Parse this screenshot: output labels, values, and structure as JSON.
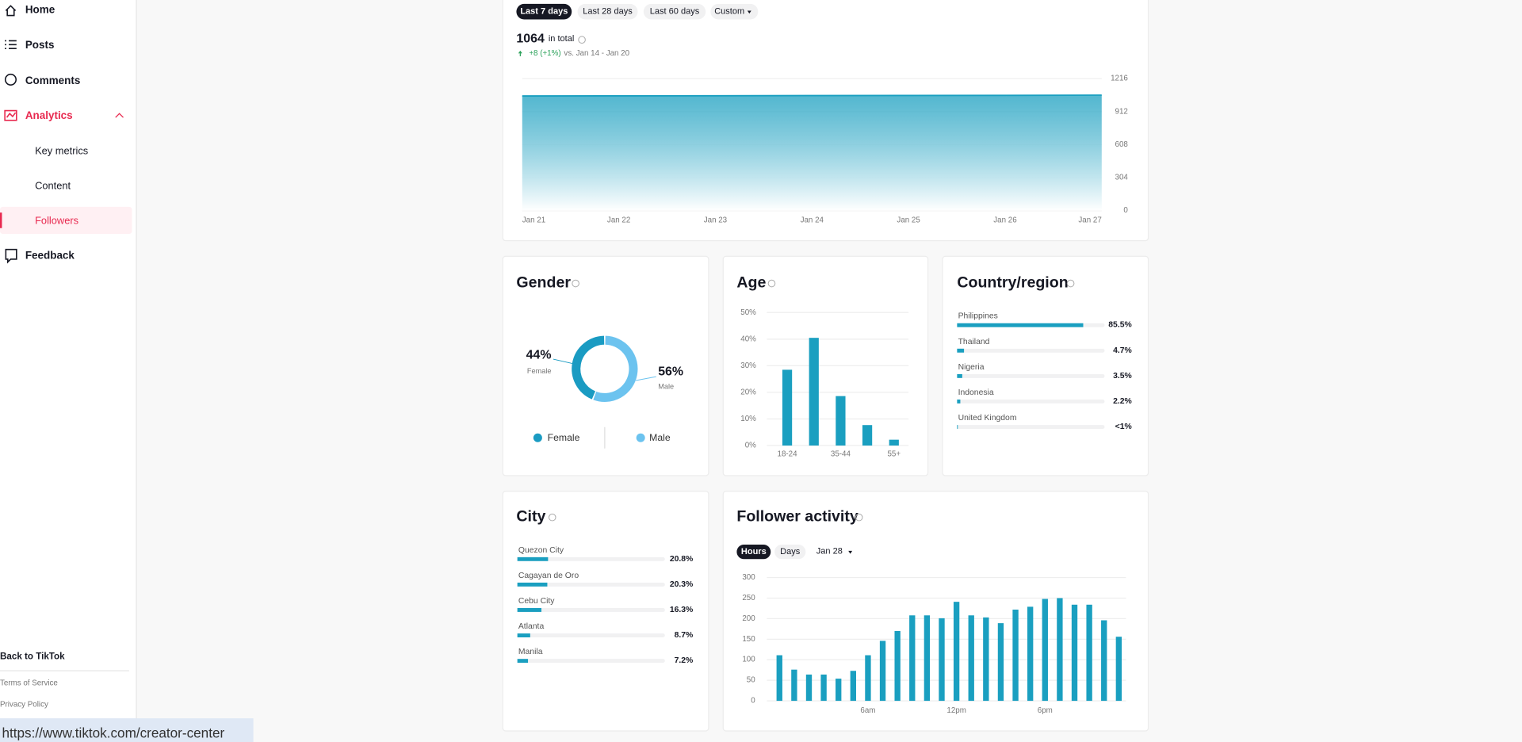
{
  "sidebar": {
    "nav": [
      "Home",
      "Posts",
      "Comments",
      "Analytics"
    ],
    "sub_nav": [
      "Key metrics",
      "Content",
      "Followers"
    ],
    "feedback": "Feedback",
    "footer": [
      "Back to TikTok",
      "Terms of Service",
      "Privacy Policy"
    ]
  },
  "status_url": "https://www.tiktok.com/creator-center",
  "followers": {
    "type": "area",
    "tabs": [
      "Last 7 days",
      "Last 28 days",
      "Last 60 days",
      "Custom"
    ],
    "total": 1064,
    "total_label": "in total",
    "change": "+8 (+1%)",
    "change_note": "vs. Jan 14 - Jan 20",
    "x": [
      "Jan 21",
      "Jan 22",
      "Jan 23",
      "Jan 24",
      "Jan 25",
      "Jan 26",
      "Jan 27"
    ],
    "values": [
      1056,
      1057,
      1058,
      1060,
      1061,
      1062,
      1064
    ],
    "ylim": [
      0,
      1216
    ],
    "yticks": [
      0,
      304,
      608,
      912,
      1216
    ],
    "color": "#1a9fc0"
  },
  "gender": {
    "type": "pie",
    "title": "Gender",
    "categories": [
      "Female",
      "Male"
    ],
    "values": [
      44,
      56
    ],
    "value_labels": [
      "44%",
      "56%"
    ],
    "colors": [
      "#1a9bc2",
      "#6cc3ef"
    ]
  },
  "age": {
    "type": "bar",
    "title": "Age",
    "categories": [
      "18-24",
      null,
      "35-44",
      null,
      "55+"
    ],
    "values": [
      28.5,
      40.5,
      18.6,
      7.7,
      2.2
    ],
    "ylim": [
      0,
      50
    ],
    "yticks": [
      {
        "value": 0,
        "label": "0%"
      },
      {
        "value": 10,
        "label": "10%"
      },
      {
        "value": 20,
        "label": "20%"
      },
      {
        "value": 30,
        "label": "30%"
      },
      {
        "value": 40,
        "label": "40%"
      },
      {
        "value": 50,
        "label": "50%"
      }
    ],
    "color": "#1a9fc0",
    "grid": true
  },
  "country": {
    "type": "hbar",
    "title": "Country/region",
    "categories": [
      "Philippines",
      "Thailand",
      "Nigeria",
      "Indonesia",
      "United Kingdom"
    ],
    "values": [
      85.5,
      4.7,
      3.5,
      2.2,
      0.5
    ],
    "value_labels": [
      "85.5%",
      "4.7%",
      "3.5%",
      "2.2%",
      "<1%"
    ],
    "xlim": [
      0,
      100
    ],
    "color": "#1a9fc0"
  },
  "city": {
    "type": "hbar",
    "title": "City",
    "categories": [
      "Quezon City",
      "Cagayan de Oro",
      "Cebu City",
      "Atlanta",
      "Manila"
    ],
    "values": [
      20.8,
      20.3,
      16.3,
      8.7,
      7.2
    ],
    "value_labels": [
      "20.8%",
      "20.3%",
      "16.3%",
      "8.7%",
      "7.2%"
    ],
    "xlim": [
      0,
      100
    ],
    "color": "#1a9fc0"
  },
  "activity": {
    "type": "bar",
    "title": "Follower activity",
    "tabs": [
      "Hours",
      "Days"
    ],
    "date": "Jan 28",
    "categories": [
      null,
      null,
      null,
      null,
      null,
      null,
      "6am",
      null,
      null,
      null,
      null,
      null,
      "12pm",
      null,
      null,
      null,
      null,
      null,
      "6pm",
      null,
      null,
      null,
      null,
      null
    ],
    "values": [
      111,
      76,
      64,
      64,
      54,
      73,
      111,
      146,
      170,
      208,
      208,
      201,
      241,
      208,
      203,
      189,
      222,
      229,
      248,
      250,
      234,
      234,
      196,
      156
    ],
    "ylim": [
      0,
      300
    ],
    "yticks": [
      0,
      50,
      100,
      150,
      200,
      250,
      300
    ],
    "color": "#1a9fc0",
    "grid": true
  }
}
